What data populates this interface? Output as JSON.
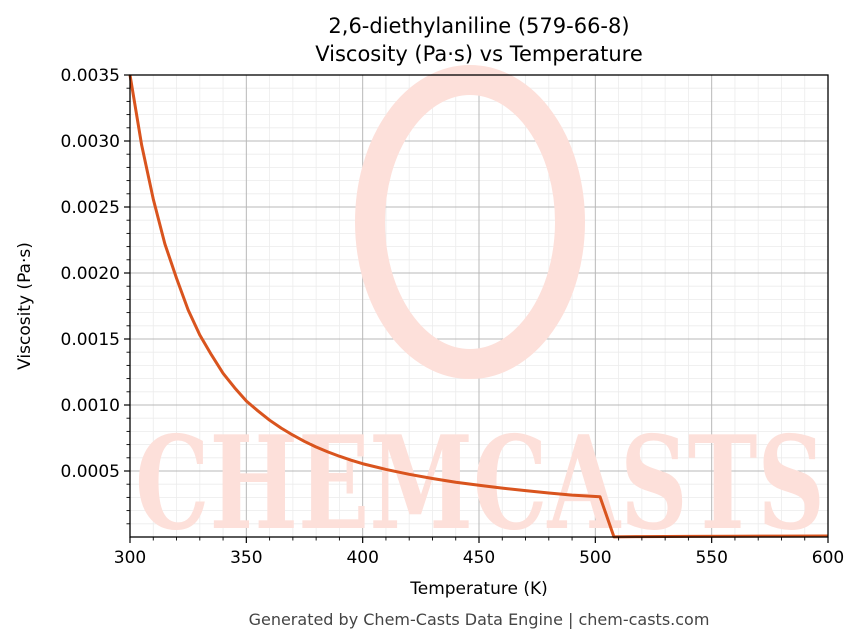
{
  "chart_data": {
    "type": "line",
    "title": "2,6-diethylaniline (579-66-8)",
    "subtitle": "Viscosity (Pa·s) vs Temperature",
    "xlabel": "Temperature (K)",
    "ylabel": "Viscosity (Pa·s)",
    "xlim": [
      300,
      600
    ],
    "ylim": [
      0.0,
      0.0035
    ],
    "xticks": [
      300,
      350,
      400,
      450,
      500,
      550,
      600
    ],
    "xtick_labels": [
      "300",
      "350",
      "400",
      "450",
      "500",
      "550",
      "600"
    ],
    "yticks": [
      0.0005,
      0.001,
      0.0015,
      0.002,
      0.0025,
      0.003,
      0.0035
    ],
    "ytick_labels": [
      "0.0005",
      "0.0010",
      "0.0015",
      "0.0020",
      "0.0025",
      "0.0030",
      "0.0035"
    ],
    "grid": true,
    "minor_grid": true,
    "series": [
      {
        "color": "#d9541e",
        "x": [
          300,
          305,
          310,
          315,
          320,
          325,
          330,
          335,
          340,
          345,
          350,
          355,
          360,
          365,
          370,
          375,
          380,
          385,
          390,
          395,
          400,
          410,
          420,
          430,
          440,
          450,
          460,
          470,
          480,
          490,
          502,
          508,
          520,
          540,
          560,
          580,
          600
        ],
        "y": [
          0.0035,
          0.00297,
          0.00256,
          0.00222,
          0.00196,
          0.00172,
          0.00153,
          0.00138,
          0.00124,
          0.00113,
          0.00103,
          0.000955,
          0.000885,
          0.000825,
          0.000772,
          0.000724,
          0.000682,
          0.000645,
          0.000612,
          0.000582,
          0.000555,
          0.000512,
          0.000475,
          0.000443,
          0.000415,
          0.000392,
          0.00037,
          0.000351,
          0.000333,
          0.000317,
          0.000305,
          1e-06,
          3e-06,
          5e-06,
          6e-06,
          7e-06,
          8e-06
        ]
      }
    ]
  },
  "watermark": {
    "text": "CHEMCASTS",
    "color": "#fde0da"
  },
  "footer": "Generated by Chem-Casts Data Engine | chem-casts.com"
}
